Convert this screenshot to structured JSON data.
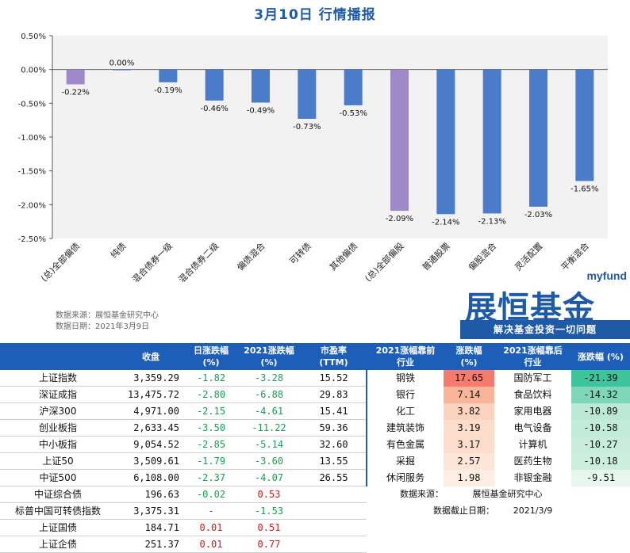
{
  "title": "3月10日  行情播报",
  "chart_data": {
    "type": "bar",
    "categories": [
      "(总)全部偏债",
      "纯债",
      "混合债券一级",
      "混合债券二级",
      "偏债混合",
      "可转债",
      "其他偏债",
      "(总)全部偏股",
      "普通股票",
      "偏股混合",
      "灵活配置",
      "平衡混合"
    ],
    "values": [
      -0.22,
      0.0,
      -0.19,
      -0.46,
      -0.49,
      -0.73,
      -0.53,
      -2.09,
      -2.14,
      -2.13,
      -2.03,
      -1.65
    ],
    "value_labels": [
      "-0.22%",
      "0.00%",
      "-0.19%",
      "-0.46%",
      "-0.49%",
      "-0.73%",
      "-0.53%",
      "-2.09%",
      "-2.14%",
      "-2.13%",
      "-2.03%",
      "-1.65%"
    ],
    "highlight": [
      true,
      false,
      false,
      false,
      false,
      false,
      false,
      true,
      false,
      false,
      false,
      false
    ],
    "ylim": [
      -2.5,
      0.5
    ],
    "yticks": [
      0.5,
      0.0,
      -0.5,
      -1.0,
      -1.5,
      -2.0,
      -2.5
    ],
    "ytick_labels": [
      "0.50%",
      "0.00%",
      "-0.50%",
      "-1.00%",
      "-1.50%",
      "-2.00%",
      "-2.50%"
    ],
    "colors": {
      "normal": "#4a7cc9",
      "highlight": "#9e88c8",
      "plot_bg": "#f2f2f2"
    },
    "xlabel": "",
    "ylabel": "",
    "grid": false
  },
  "source": {
    "line1": "数据来源：展恒基金研究中心",
    "line2": "数据日期：2021年3月9日"
  },
  "logo": {
    "top": "myfund",
    "main": "展恒基金",
    "slogan": "解决基金投资一切问题"
  },
  "table": {
    "headers": {
      "close": "收盘",
      "daily": "日涨跌幅\n(%)",
      "ytd": "2021涨跌幅\n(%)",
      "pe": "市盈率\n(TTM)",
      "top_ind": "2021涨幅靠前\n行业",
      "top_chg": "涨跌幅\n(%)",
      "bot_ind": "2021涨幅靠后\n行业",
      "bot_chg": "涨跌幅 (%)"
    },
    "rows": [
      {
        "name": "上证指数",
        "close": "3,359.29",
        "daily": "-1.82",
        "ytd": "-3.28",
        "pe": "15.52",
        "ti": "钢铁",
        "tc": "17.65",
        "bi": "国防军工",
        "bc": "-21.39"
      },
      {
        "name": "深证成指",
        "close": "13,475.72",
        "daily": "-2.80",
        "ytd": "-6.88",
        "pe": "29.83",
        "ti": "银行",
        "tc": "7.14",
        "bi": "食品饮料",
        "bc": "-14.32"
      },
      {
        "name": "沪深300",
        "close": "4,971.00",
        "daily": "-2.15",
        "ytd": "-4.61",
        "pe": "15.41",
        "ti": "化工",
        "tc": "3.82",
        "bi": "家用电器",
        "bc": "-10.89"
      },
      {
        "name": "创业板指",
        "close": "2,633.45",
        "daily": "-3.50",
        "ytd": "-11.22",
        "pe": "59.36",
        "ti": "建筑装饰",
        "tc": "3.19",
        "bi": "电气设备",
        "bc": "-10.58"
      },
      {
        "name": "中小板指",
        "close": "9,054.52",
        "daily": "-2.85",
        "ytd": "-5.14",
        "pe": "32.60",
        "ti": "有色金属",
        "tc": "3.17",
        "bi": "计算机",
        "bc": "-10.27"
      },
      {
        "name": "上证50",
        "close": "3,509.61",
        "daily": "-1.79",
        "ytd": "-3.60",
        "pe": "13.55",
        "ti": "采掘",
        "tc": "2.57",
        "bi": "医药生物",
        "bc": "-10.18"
      },
      {
        "name": "中证500",
        "close": "6,108.00",
        "daily": "-2.37",
        "ytd": "-4.07",
        "pe": "26.55",
        "ti": "休闲服务",
        "tc": "1.98",
        "bi": "非银金融",
        "bc": "-9.51"
      }
    ],
    "bond_rows": [
      {
        "name": "中证综合债",
        "close": "196.63",
        "daily": "-0.02",
        "ytd": "0.53",
        "dc": "grn",
        "yc": "red"
      },
      {
        "name": "标普中国可转债指数",
        "close": "3,375.31",
        "daily": "-",
        "ytd": "-1.53",
        "dc": "red",
        "yc": "grn"
      },
      {
        "name": "上证国债",
        "close": "184.71",
        "daily": "0.01",
        "ytd": "0.51",
        "dc": "red",
        "yc": "red"
      },
      {
        "name": "上证企债",
        "close": "251.37",
        "daily": "0.01",
        "ytd": "0.77",
        "dc": "red",
        "yc": "red"
      }
    ],
    "note": {
      "source_label": "数据来源：",
      "source_value": "展恒基金研究中心",
      "date_label": "数据截止日期：",
      "date_value": "2021/3/9"
    },
    "cell_colors": {
      "top": [
        "#f47b6e",
        "#f9b59a",
        "#fbd2bd",
        "#fcdccb",
        "#fcdccb",
        "#fde6d8",
        "#fdeee4"
      ],
      "bottom": [
        "#3ec49b",
        "#7fd7b9",
        "#bce9d6",
        "#c3ebd9",
        "#c9eddc",
        "#cbeedd",
        "#e8f7ee"
      ]
    }
  }
}
